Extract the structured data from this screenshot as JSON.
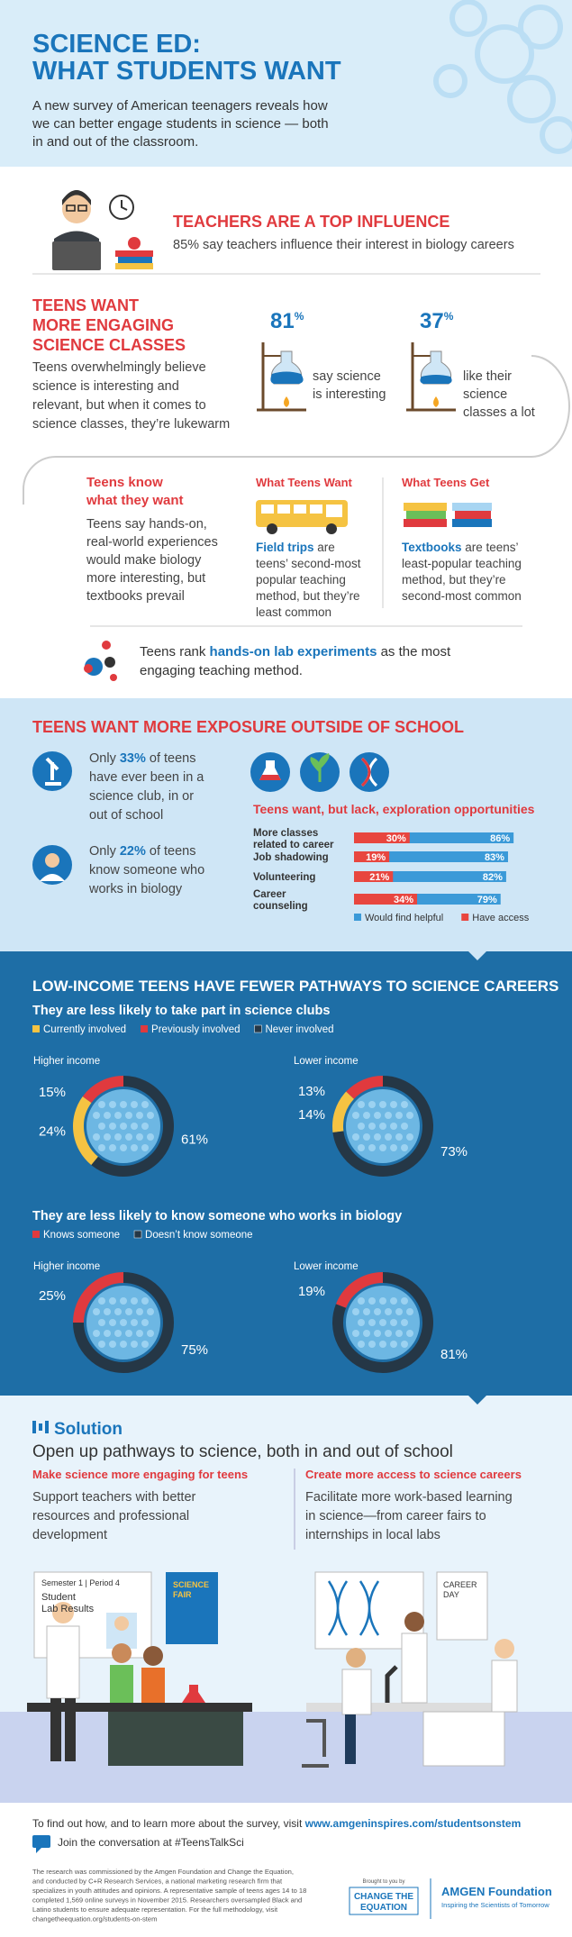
{
  "header": {
    "title_lines": [
      "SCIENCE ED:",
      "WHAT STUDENTS WANT"
    ],
    "subtitle_lines": [
      "A new survey of American teenagers reveals how",
      "we can better engage students in science — both",
      "in and out of the classroom."
    ]
  },
  "teachers": {
    "heading": "TEACHERS ARE A TOP INFLUENCE",
    "text": "85% say teachers influence their interest in biology careers"
  },
  "classes": {
    "heading_lines": [
      "TEENS WANT",
      "MORE ENGAGING",
      "SCIENCE CLASSES"
    ],
    "body_lines": [
      "Teens overwhelmingly believe",
      "science is interesting and",
      "relevant, but when it comes to",
      "science classes, they’re lukewarm"
    ],
    "stats": [
      {
        "number": "81",
        "unit": "%",
        "lines": [
          "say science",
          "is interesting"
        ]
      },
      {
        "number": "37",
        "unit": "%",
        "lines": [
          "like their",
          "science",
          "classes a lot"
        ]
      }
    ]
  },
  "know": {
    "heading_lines": [
      "Teens know",
      "what they want"
    ],
    "body_lines": [
      "Teens say hands-on,",
      "real-world experiences",
      "would make biology",
      "more interesting, but",
      "textbooks prevail"
    ],
    "want": {
      "heading": "What Teens Want",
      "highlight": "Field trips",
      "lines": [
        " are",
        "teens’ second-most",
        "popular teaching",
        "method, but they’re",
        "least common"
      ]
    },
    "get": {
      "heading": "What Teens Get",
      "highlight": "Textbooks",
      "lines": [
        " are teens’",
        "least-popular teaching",
        "method, but they’re",
        "second-most common"
      ]
    }
  },
  "rank": {
    "before": "Teens rank ",
    "highlight": "hands-on lab experiments",
    "lines": [
      " as the most",
      "engaging teaching method."
    ]
  },
  "exposure": {
    "heading": "TEENS WANT MORE EXPOSURE OUTSIDE OF SCHOOL",
    "facts": [
      {
        "before": "Only ",
        "highlight": "33%",
        "lines": [
          " of teens",
          "have ever been in a",
          "science club, in or",
          "out of school"
        ]
      },
      {
        "before": "Only ",
        "highlight": "22%",
        "lines": [
          " of teens",
          "know someone who",
          "works in biology"
        ]
      }
    ],
    "chart": {
      "type": "bar",
      "title": "Teens want, but lack, exploration opportunities",
      "categories": [
        [
          "More classes",
          "related to career"
        ],
        [
          "Job shadowing"
        ],
        [
          "Volunteering"
        ],
        [
          "Career",
          "counseling"
        ]
      ],
      "series": [
        {
          "name": "Would find helpful",
          "color": "#3b9ad8",
          "values": [
            86,
            83,
            82,
            79
          ],
          "value_labels": [
            "86%",
            "83%",
            "82%",
            "79%"
          ]
        },
        {
          "name": "Have access",
          "color": "#e8463f",
          "values": [
            30,
            19,
            21,
            34
          ],
          "value_labels": [
            "30%",
            "19%",
            "21%",
            "34%"
          ]
        }
      ],
      "xlim": [
        0,
        100
      ]
    }
  },
  "low_income": {
    "heading": "LOW-INCOME TEENS HAVE FEWER PATHWAYS TO SCIENCE CAREERS",
    "charts": [
      {
        "type": "pie",
        "title": "They are less likely to take part in science clubs",
        "groups": [
          "Higher income",
          "Lower income"
        ],
        "series": [
          {
            "name": "Currently involved",
            "color": "#f5c342",
            "values": [
              24,
              14
            ],
            "value_labels": [
              "24%",
              "14%"
            ]
          },
          {
            "name": "Previously involved",
            "color": "#e03a3e",
            "values": [
              15,
              13
            ],
            "value_labels": [
              "15%",
              "13%"
            ]
          },
          {
            "name": "Never involved",
            "color": "#253746",
            "values": [
              61,
              73
            ],
            "value_labels": [
              "61%",
              "73%"
            ]
          }
        ],
        "draw_order": [
          1,
          0,
          2
        ]
      },
      {
        "type": "pie",
        "title": "They are less likely to know someone who works in biology",
        "groups": [
          "Higher income",
          "Lower income"
        ],
        "series": [
          {
            "name": "Knows someone",
            "color": "#e03a3e",
            "values": [
              25,
              19
            ],
            "value_labels": [
              "25%",
              "19%"
            ]
          },
          {
            "name": "Doesn’t know someone",
            "color": "#253746",
            "values": [
              75,
              81
            ],
            "value_labels": [
              "75%",
              "81%"
            ]
          }
        ],
        "draw_order": [
          0,
          1
        ]
      }
    ]
  },
  "solution": {
    "heading": "Solution",
    "subheading": "Open up pathways to science, both in and out of school",
    "columns": [
      {
        "title": "Make science more engaging for teens",
        "lines": [
          "Support teachers with better",
          "resources and professional",
          "development"
        ]
      },
      {
        "title": "Create more access to science careers",
        "lines": [
          "Facilitate more work-based learning",
          "in science—from career fairs to",
          "internships in local labs"
        ]
      }
    ],
    "illustration": {
      "board_lines": [
        "Semester 1 | Period 4",
        "Student",
        "Lab Results"
      ],
      "poster_lines": [
        "SCIENCE",
        "FAIR"
      ],
      "career_lines": [
        "CAREER",
        "DAY"
      ]
    }
  },
  "footer": {
    "visit": "To find out how, and to learn more about the survey, visit ",
    "link": "www.amgeninspires.com/studentsonstem",
    "join": "Join the conversation at #TeensTalkSci",
    "method_lines": [
      "The research was commissioned by the Amgen Foundation and Change the Equation,",
      "and conducted by C+R Research Services, a national marketing research firm that",
      "specializes in youth attitudes and opinions. A representative sample of teens ages 14 to 18",
      "completed 1,569 online surveys in November 2015. Researchers oversampled Black and",
      "Latino students to ensure adequate representation. For the full methodology, visit",
      "changetheequation.org/students-on-stem"
    ],
    "brought": "Brought to you by",
    "cte_lines": [
      "CHANGE THE",
      "EQUATION"
    ],
    "amgen": "AMGEN Foundation",
    "amgen_tag": "Inspiring the Scientists of Tomorrow"
  }
}
